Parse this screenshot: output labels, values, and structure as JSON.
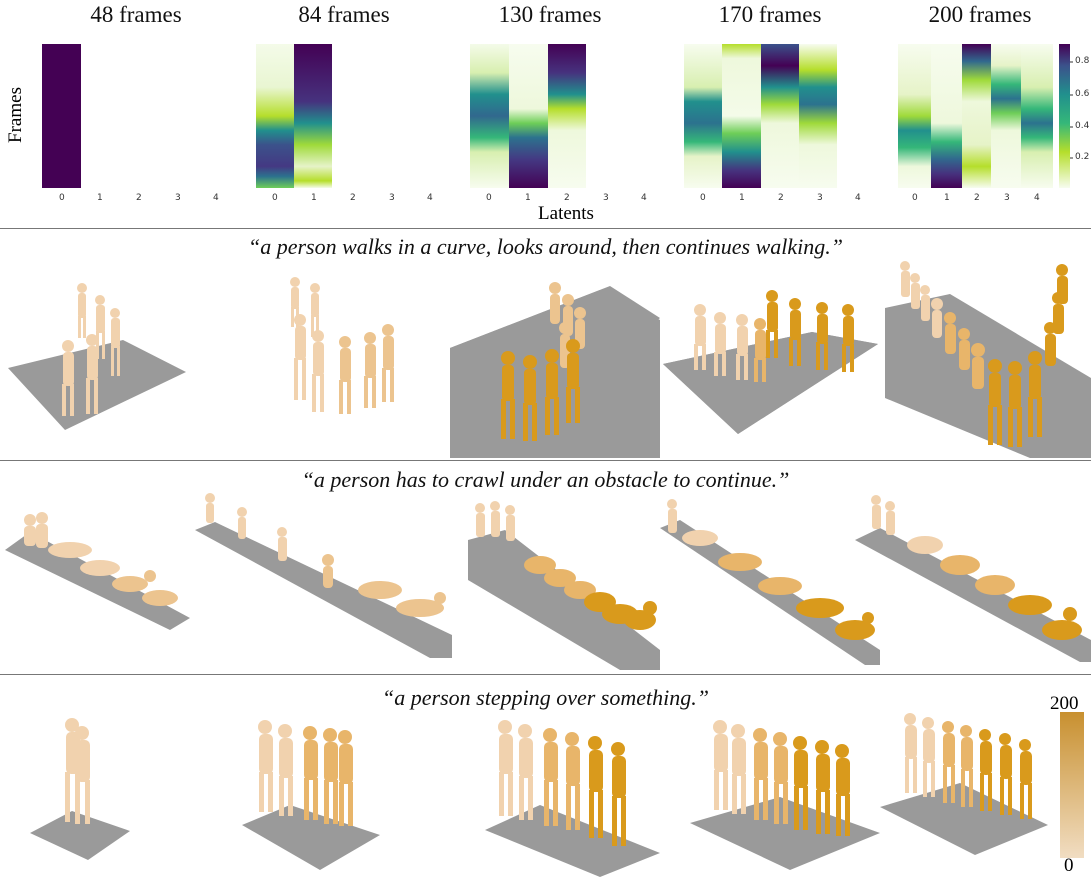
{
  "figure": {
    "y_axis_label": "Frames",
    "x_axis_label": "Latents",
    "heatmap_titles": [
      "48 frames",
      "84 frames",
      "130 frames",
      "170 frames",
      "200 frames"
    ],
    "latent_ticks": [
      "0",
      "1",
      "2",
      "3",
      "4"
    ],
    "colorbar_ticks": [
      "0.8",
      "0.6",
      "0.4",
      "0.2"
    ],
    "captions": [
      "“a person walks in a curve, looks around, then continues walking.”",
      "“a person has to crawl under an obstacle to continue.”",
      "“a person stepping over something.”"
    ],
    "frame_colorbar": {
      "max_label": "200",
      "min_label": "0"
    }
  },
  "colors": {
    "viridis_dark": "#440154",
    "viridis_mid": "#21908d",
    "viridis_light": "#b5de2b",
    "viridis_pale": "#f4fbe9",
    "floor": "#9a9a9a",
    "body_early": "#f1d2ae",
    "body_late": "#d99a1c"
  },
  "chart_data": [
    {
      "type": "heatmap",
      "title": "48 frames",
      "xlabel": "",
      "ylabel": "Frames",
      "x": [
        0,
        1,
        2,
        3,
        4
      ],
      "active_latents": 1
    },
    {
      "type": "heatmap",
      "title": "84 frames",
      "xlabel": "",
      "ylabel": "",
      "x": [
        0,
        1,
        2,
        3,
        4
      ],
      "active_latents": 2
    },
    {
      "type": "heatmap",
      "title": "130 frames",
      "xlabel": "Latents",
      "ylabel": "",
      "x": [
        0,
        1,
        2,
        3,
        4
      ],
      "active_latents": 3
    },
    {
      "type": "heatmap",
      "title": "170 frames",
      "xlabel": "",
      "ylabel": "",
      "x": [
        0,
        1,
        2,
        3,
        4
      ],
      "active_latents": 4
    },
    {
      "type": "heatmap",
      "title": "200 frames",
      "xlabel": "",
      "ylabel": "",
      "x": [
        0,
        1,
        2,
        3,
        4
      ],
      "active_latents": 5,
      "colorbar_ticks": [
        0.8,
        0.6,
        0.4,
        0.2
      ]
    }
  ]
}
